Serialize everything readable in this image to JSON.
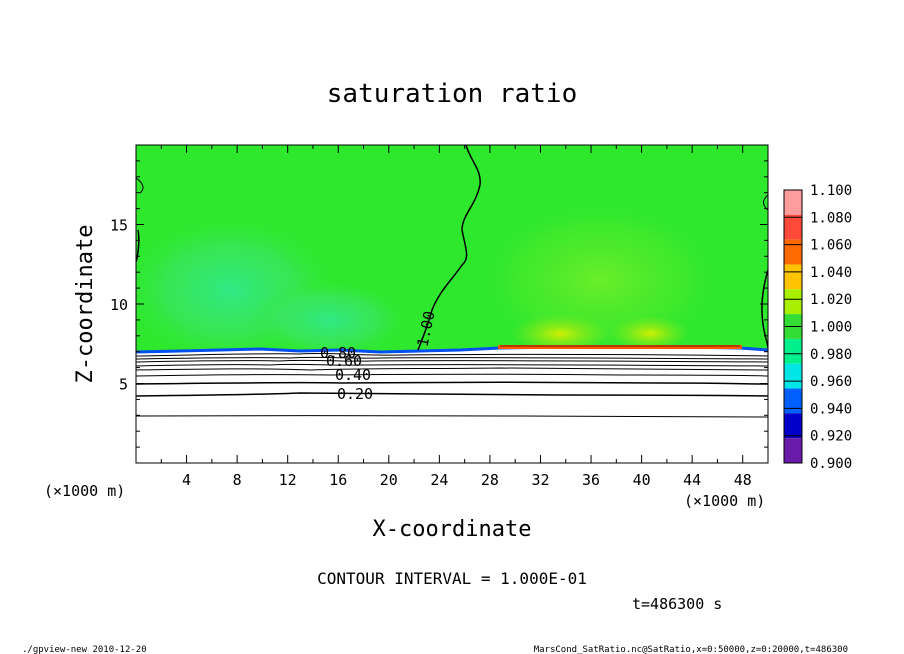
{
  "chart_data": {
    "type": "heatmap",
    "title": "saturation ratio",
    "xlabel": "X-coordinate",
    "ylabel": "Z-coordinate",
    "x_unit": "(×1000 m)",
    "z_unit": "(×1000 m)",
    "xlim": [
      0,
      50
    ],
    "ylim": [
      0,
      20
    ],
    "x_ticks": [
      "4",
      "8",
      "12",
      "16",
      "20",
      "24",
      "28",
      "32",
      "36",
      "40",
      "44",
      "48"
    ],
    "y_ticks": [
      "5",
      "10",
      "15"
    ],
    "colorbar": {
      "labels": [
        "1.100",
        "1.080",
        "1.060",
        "1.040",
        "1.020",
        "1.000",
        "0.980",
        "0.960",
        "0.940",
        "0.920",
        "0.900"
      ],
      "colors": [
        "#ff9d9d",
        "#ff4a3a",
        "#ff6a00",
        "#ffc400",
        "#a8f000",
        "#33dd33",
        "#00f08c",
        "#00e5e5",
        "#0060ff",
        "#0000c8",
        "#6a1aa8"
      ]
    },
    "field_colors": {
      "saturated": "#2ee82e",
      "light_green": "#4cef4c",
      "teal_green": "#26e894",
      "dry": "#ffffff",
      "layer_edge": "#0050f0",
      "supersaturated": "#ff5a00"
    },
    "contour_labels": [
      "1.00",
      "0.80",
      "0.60",
      "0.40",
      "0.20"
    ],
    "contour_interval": "CONTOUR INTERVAL = 1.000E-01",
    "time": "t=486300 s",
    "footer_left": "./gpview-new   2010-12-20",
    "footer_right": "MarsCond_SatRatio.nc@SatRatio,x=0:50000,z=0:20000,t=486300"
  }
}
